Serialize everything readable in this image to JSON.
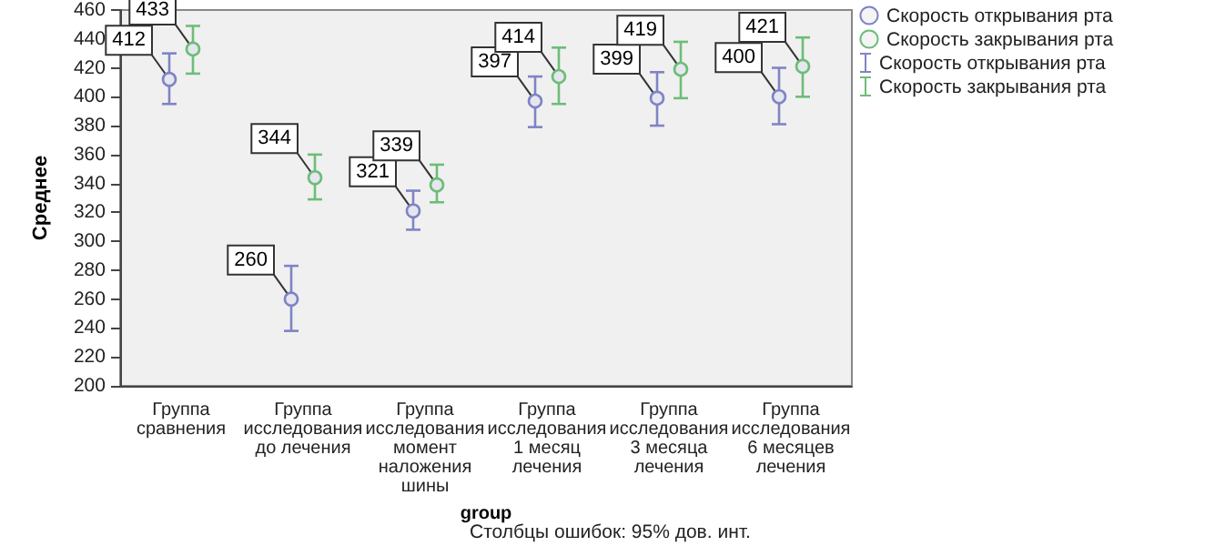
{
  "chart_data": {
    "type": "scatter",
    "xlabel": "group",
    "ylabel": "Среднее",
    "annotations": [
      "Столбцы ошибок: 95% дов. инт."
    ],
    "categories": [
      "Группа сравнения",
      "Группа исследования до лечения",
      "Группа исследования момент наложения шины",
      "Группа исследования 1 месяц лечения",
      "Группа исследования 3 месяца лечения",
      "Группа исследования 6 месяцев лечения"
    ],
    "series": [
      {
        "name": "Скорость открывания рта",
        "color": "#7f84c4",
        "values": [
          412,
          260,
          321,
          397,
          399,
          400
        ],
        "errors": [
          [
            395,
            430
          ],
          [
            238,
            283
          ],
          [
            308,
            335
          ],
          [
            379,
            414
          ],
          [
            380,
            417
          ],
          [
            381,
            420
          ]
        ]
      },
      {
        "name": "Скорость закрывания рта",
        "color": "#6dbd78",
        "values": [
          433,
          344,
          339,
          414,
          419,
          421
        ],
        "errors": [
          [
            416,
            449
          ],
          [
            329,
            360
          ],
          [
            327,
            353
          ],
          [
            395,
            434
          ],
          [
            399,
            438
          ],
          [
            400,
            441
          ]
        ]
      }
    ],
    "ylim": [
      200,
      460
    ],
    "yticks": [
      200,
      220,
      240,
      260,
      280,
      300,
      320,
      340,
      360,
      380,
      400,
      420,
      440,
      460
    ],
    "grid": false,
    "legend": "top right",
    "marker": "circle",
    "data_labels": true
  }
}
